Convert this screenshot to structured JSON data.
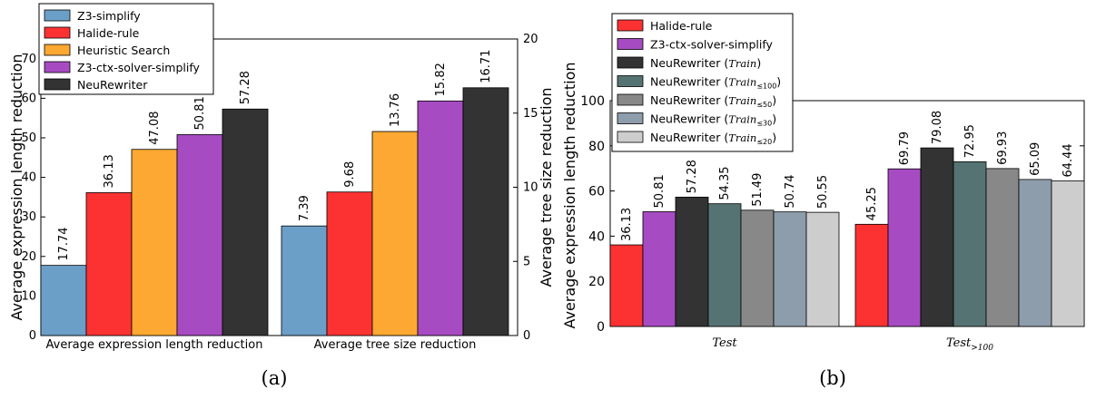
{
  "chart_data": [
    {
      "type": "bar",
      "panel_label": "(a)",
      "ylabel": "Average expression length reduction",
      "y2label": "Average tree size reduction",
      "ylim": [
        0,
        75
      ],
      "yticks": [
        0,
        10,
        20,
        30,
        40,
        50,
        60,
        70
      ],
      "y2lim": [
        0,
        20
      ],
      "y2ticks": [
        0,
        5,
        10,
        15,
        20
      ],
      "legend_position": "top-left",
      "categories": [
        "Average expression length reduction",
        "Average tree size reduction"
      ],
      "series": [
        {
          "name": "Z3-simplify",
          "color": "#6c9fc8",
          "values": [
            17.74,
            7.39
          ]
        },
        {
          "name": "Halide-rule",
          "color": "#fc3232",
          "values": [
            36.13,
            9.68
          ]
        },
        {
          "name": "Heuristic Search",
          "color": "#fca832",
          "values": [
            47.08,
            13.76
          ]
        },
        {
          "name": "Z3-ctx-solver-simplify",
          "color": "#a64bc2",
          "values": [
            50.81,
            15.82
          ]
        },
        {
          "name": "NeuRewriter",
          "color": "#333333",
          "values": [
            57.28,
            16.71
          ]
        }
      ]
    },
    {
      "type": "bar",
      "panel_label": "(b)",
      "ylabel": "Average expression length reduction",
      "ylim": [
        0,
        100
      ],
      "yticks": [
        0,
        20,
        40,
        60,
        80,
        100
      ],
      "legend_position": "top-left",
      "categories": [
        {
          "base": "Test",
          "sub": ""
        },
        {
          "base": "Test",
          "sub": ">100"
        }
      ],
      "series": [
        {
          "name": "Halide-rule",
          "color": "#fc3232",
          "values": [
            36.13,
            45.25
          ]
        },
        {
          "name": "Z3-ctx-solver-simplify",
          "color": "#a64bc2",
          "values": [
            50.81,
            69.79
          ]
        },
        {
          "name": "NeuRewriter",
          "name_it": "Train",
          "name_sub": "",
          "color": "#333333",
          "values": [
            57.28,
            79.08
          ]
        },
        {
          "name": "NeuRewriter",
          "name_it": "Train",
          "name_sub": "≤100",
          "color": "#567373",
          "values": [
            54.35,
            72.95
          ]
        },
        {
          "name": "NeuRewriter",
          "name_it": "Train",
          "name_sub": "≤50",
          "color": "#888888",
          "values": [
            51.49,
            69.93
          ]
        },
        {
          "name": "NeuRewriter",
          "name_it": "Train",
          "name_sub": "≤30",
          "color": "#8e9dab",
          "values": [
            50.74,
            65.09
          ]
        },
        {
          "name": "NeuRewriter",
          "name_it": "Train",
          "name_sub": "≤20",
          "color": "#cdcdcd",
          "values": [
            50.55,
            64.44
          ]
        }
      ]
    }
  ]
}
